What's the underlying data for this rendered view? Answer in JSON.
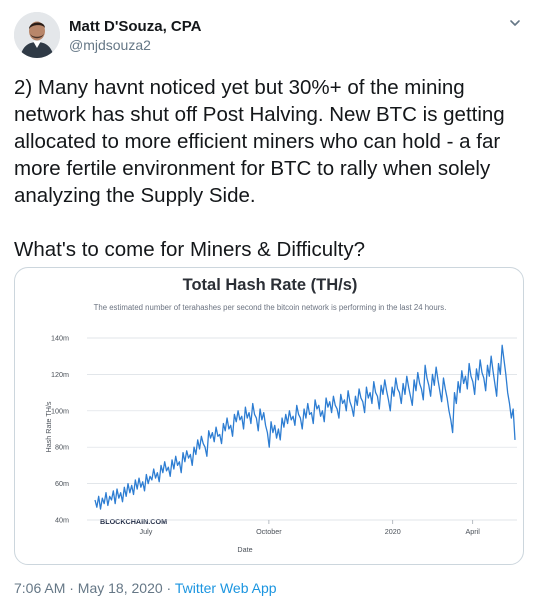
{
  "author": {
    "display_name": "Matt D'Souza, CPA",
    "handle": "@mjdsouza2",
    "avatar_icon": "person-avatar-icon"
  },
  "tweet": {
    "text": "2) Many havnt noticed yet but 30%+ of the mining network has shut off Post Halving. New BTC is getting allocated to more efficient miners who can hold - a far more fertile environment for BTC to rally when solely analyzing the Supply Side.\n\nWhat's to come for Miners & Difficulty?",
    "timestamp": "7:06 AM · May 18, 2020",
    "separator": " · ",
    "source": "Twitter Web App"
  },
  "colors": {
    "line": "#2d7dd2",
    "grid": "#d9dde3",
    "link": "#1b95e0",
    "muted": "#657786"
  },
  "chart_data": {
    "type": "line",
    "title": "Total Hash Rate (TH/s)",
    "subtitle": "The estimated number of terahashes per second the bitcoin network is performing in the last 24 hours.",
    "xlabel": "Date",
    "ylabel": "Hash Rate TH/s",
    "watermark": "BLOCKCHAIN.COM",
    "yticks": [
      "140m",
      "120m",
      "100m",
      "80m",
      "60m",
      "40m"
    ],
    "ytick_values": [
      140,
      120,
      100,
      80,
      60,
      40
    ],
    "ylim": [
      40,
      140
    ],
    "xticks": [
      "July",
      "October",
      "2020",
      "April"
    ],
    "xtick_positions": [
      0.137,
      0.423,
      0.711,
      0.897
    ],
    "grid": true,
    "series": [
      {
        "values": [
          51,
          47,
          53,
          46,
          52,
          49,
          55,
          48,
          53,
          51,
          56,
          49,
          57,
          52,
          55,
          50,
          58,
          53,
          60,
          55,
          59,
          54,
          62,
          57,
          63,
          58,
          61,
          56,
          65,
          60,
          64,
          62,
          68,
          63,
          66,
          61,
          70,
          66,
          72,
          67,
          69,
          64,
          73,
          68,
          75,
          70,
          72,
          66,
          77,
          72,
          78,
          74,
          76,
          70,
          80,
          76,
          84,
          79,
          86,
          82,
          80,
          75,
          89,
          85,
          88,
          83,
          91,
          86,
          87,
          82,
          93,
          89,
          96,
          90,
          92,
          86,
          98,
          94,
          100,
          95,
          97,
          90,
          102,
          96,
          99,
          93,
          104,
          98,
          96,
          89,
          101,
          95,
          99,
          92,
          88,
          80,
          94,
          88,
          92,
          85,
          90,
          84,
          96,
          91,
          98,
          93,
          100,
          95,
          97,
          92,
          103,
          98,
          96,
          90,
          101,
          96,
          104,
          98,
          99,
          93,
          106,
          101,
          103,
          97,
          100,
          94,
          107,
          102,
          105,
          99,
          108,
          103,
          101,
          96,
          109,
          104,
          106,
          100,
          111,
          105,
          102,
          97,
          108,
          103,
          112,
          107,
          105,
          99,
          113,
          107,
          110,
          104,
          116,
          110,
          108,
          101,
          114,
          109,
          117,
          111,
          106,
          100,
          113,
          108,
          118,
          112,
          110,
          104,
          115,
          109,
          119,
          113,
          108,
          103,
          117,
          111,
          121,
          115,
          112,
          106,
          125,
          118,
          114,
          108,
          120,
          114,
          124,
          117,
          111,
          105,
          118,
          112,
          107,
          100,
          95,
          88,
          110,
          104,
          116,
          110,
          122,
          115,
          119,
          112,
          126,
          119,
          116,
          109,
          123,
          117,
          128,
          121,
          118,
          111,
          125,
          119,
          130,
          122,
          115,
          108,
          126,
          120,
          136,
          128,
          120,
          110,
          104,
          96,
          101,
          84
        ]
      }
    ]
  }
}
